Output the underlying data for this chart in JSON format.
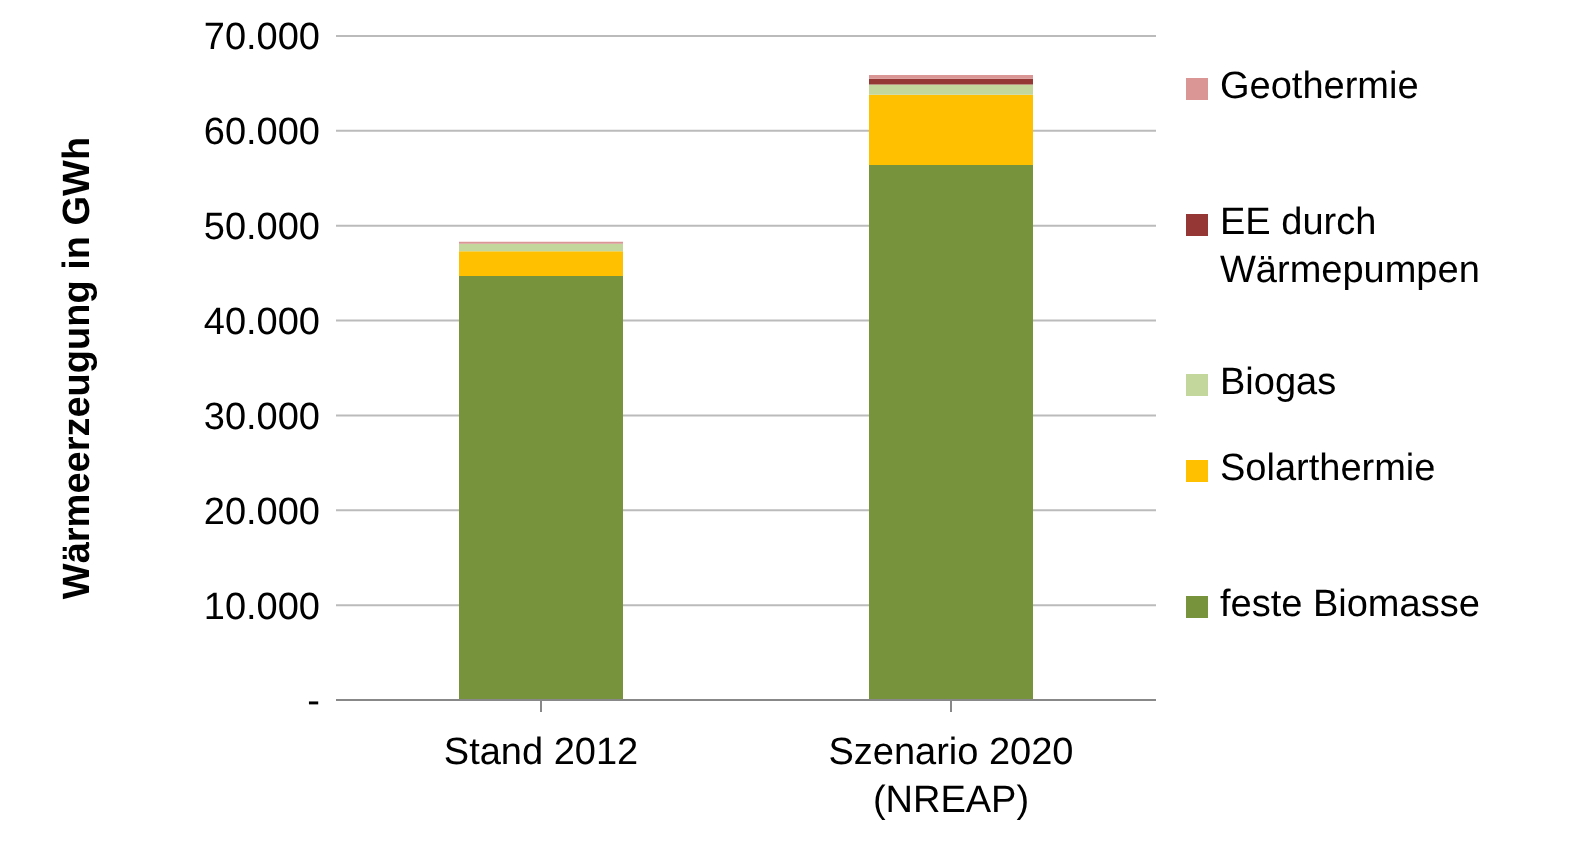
{
  "chart_data": {
    "type": "bar",
    "stacked": true,
    "ylabel": "Wärmeerzeugung in GWh",
    "categories": [
      "Stand 2012",
      "Szenario 2020\n(NREAP)"
    ],
    "series": [
      {
        "name": "feste Biomasse",
        "color": "#77933c",
        "values": [
          44700,
          56400
        ]
      },
      {
        "name": "Solarthermie",
        "color": "#ffc000",
        "values": [
          2600,
          7400
        ]
      },
      {
        "name": "Biogas",
        "color": "#c3d69b",
        "values": [
          800,
          1100
        ]
      },
      {
        "name": "EE durch Wärmepumpen",
        "color": "#953735",
        "values": [
          0,
          600
        ]
      },
      {
        "name": "Geothermie",
        "color": "#d99694",
        "values": [
          200,
          400
        ]
      }
    ],
    "ylim": [
      0,
      70000
    ],
    "yticks": [
      {
        "value": 0,
        "label": "-"
      },
      {
        "value": 10000,
        "label": "10.000"
      },
      {
        "value": 20000,
        "label": "20.000"
      },
      {
        "value": 30000,
        "label": "30.000"
      },
      {
        "value": 40000,
        "label": "40.000"
      },
      {
        "value": 50000,
        "label": "50.000"
      },
      {
        "value": 60000,
        "label": "60.000"
      },
      {
        "value": 70000,
        "label": "70.000"
      }
    ],
    "grid": "y",
    "legend": "right"
  }
}
